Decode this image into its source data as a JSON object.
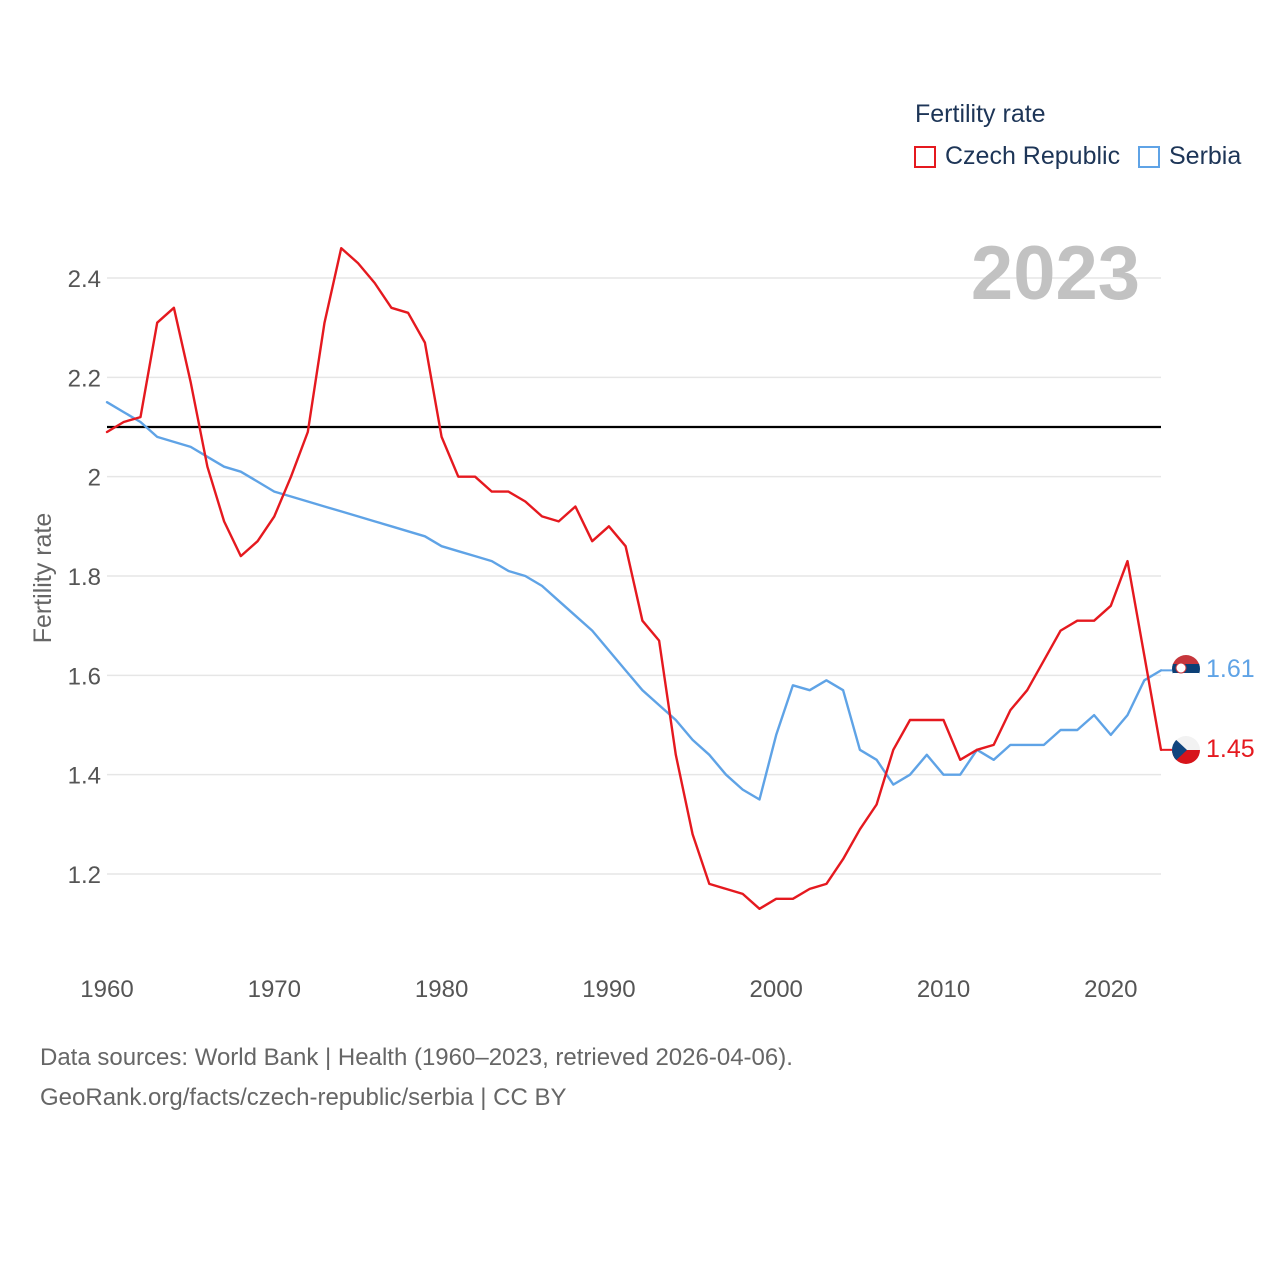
{
  "legend": {
    "title": "Fertility rate",
    "items": [
      {
        "label": "Czech Republic",
        "color": "#e5191f"
      },
      {
        "label": "Serbia",
        "color": "#5fa3e6"
      }
    ]
  },
  "year_label": "2023",
  "source": {
    "line1": "Data sources: World Bank | Health (1960–2023, retrieved 2026-04-06).",
    "line2": "GeoRank.org/facts/czech-republic/serbia | CC BY"
  },
  "chart_data": {
    "type": "line",
    "title": "Fertility rate",
    "xlabel": "",
    "ylabel": "Fertility rate",
    "xlim": [
      1960,
      2023
    ],
    "ylim": [
      1.1,
      2.5
    ],
    "xticks": [
      1960,
      1970,
      1980,
      1990,
      2000,
      2010,
      2020
    ],
    "yticks": [
      1.2,
      1.4,
      1.6,
      1.8,
      2.0,
      2.2,
      2.4
    ],
    "ytick_labels": [
      "1.2",
      "1.4",
      "1.6",
      "1.8",
      "2",
      "2.2",
      "2.4"
    ],
    "grid": true,
    "reference_line": {
      "y": 2.1,
      "color": "#000000"
    },
    "x": [
      1960,
      1961,
      1962,
      1963,
      1964,
      1965,
      1966,
      1967,
      1968,
      1969,
      1970,
      1971,
      1972,
      1973,
      1974,
      1975,
      1976,
      1977,
      1978,
      1979,
      1980,
      1981,
      1982,
      1983,
      1984,
      1985,
      1986,
      1987,
      1988,
      1989,
      1990,
      1991,
      1992,
      1993,
      1994,
      1995,
      1996,
      1997,
      1998,
      1999,
      2000,
      2001,
      2002,
      2003,
      2004,
      2005,
      2006,
      2007,
      2008,
      2009,
      2010,
      2011,
      2012,
      2013,
      2014,
      2015,
      2016,
      2017,
      2018,
      2019,
      2020,
      2021,
      2022,
      2023
    ],
    "series": [
      {
        "name": "Czech Republic",
        "color": "#e5191f",
        "end_label": "1.45",
        "values": [
          2.09,
          2.11,
          2.12,
          2.31,
          2.34,
          2.19,
          2.02,
          1.91,
          1.84,
          1.87,
          1.92,
          2.0,
          2.09,
          2.31,
          2.46,
          2.43,
          2.39,
          2.34,
          2.33,
          2.27,
          2.08,
          2.0,
          2.0,
          1.97,
          1.97,
          1.95,
          1.92,
          1.91,
          1.94,
          1.87,
          1.9,
          1.86,
          1.71,
          1.67,
          1.44,
          1.28,
          1.18,
          1.17,
          1.16,
          1.13,
          1.15,
          1.15,
          1.17,
          1.18,
          1.23,
          1.29,
          1.34,
          1.45,
          1.51,
          1.51,
          1.51,
          1.43,
          1.45,
          1.46,
          1.53,
          1.57,
          1.63,
          1.69,
          1.71,
          1.71,
          1.74,
          1.83,
          1.64,
          1.45
        ]
      },
      {
        "name": "Serbia",
        "color": "#5fa3e6",
        "end_label": "1.61",
        "values": [
          2.15,
          2.13,
          2.11,
          2.08,
          2.07,
          2.06,
          2.04,
          2.02,
          2.01,
          1.99,
          1.97,
          1.96,
          1.95,
          1.94,
          1.93,
          1.92,
          1.91,
          1.9,
          1.89,
          1.88,
          1.86,
          1.85,
          1.84,
          1.83,
          1.81,
          1.8,
          1.78,
          1.75,
          1.72,
          1.69,
          1.65,
          1.61,
          1.57,
          1.54,
          1.51,
          1.47,
          1.44,
          1.4,
          1.37,
          1.35,
          1.48,
          1.58,
          1.57,
          1.59,
          1.57,
          1.45,
          1.43,
          1.38,
          1.4,
          1.44,
          1.4,
          1.4,
          1.45,
          1.43,
          1.46,
          1.46,
          1.46,
          1.49,
          1.49,
          1.52,
          1.48,
          1.52,
          1.59,
          1.61
        ]
      }
    ]
  }
}
